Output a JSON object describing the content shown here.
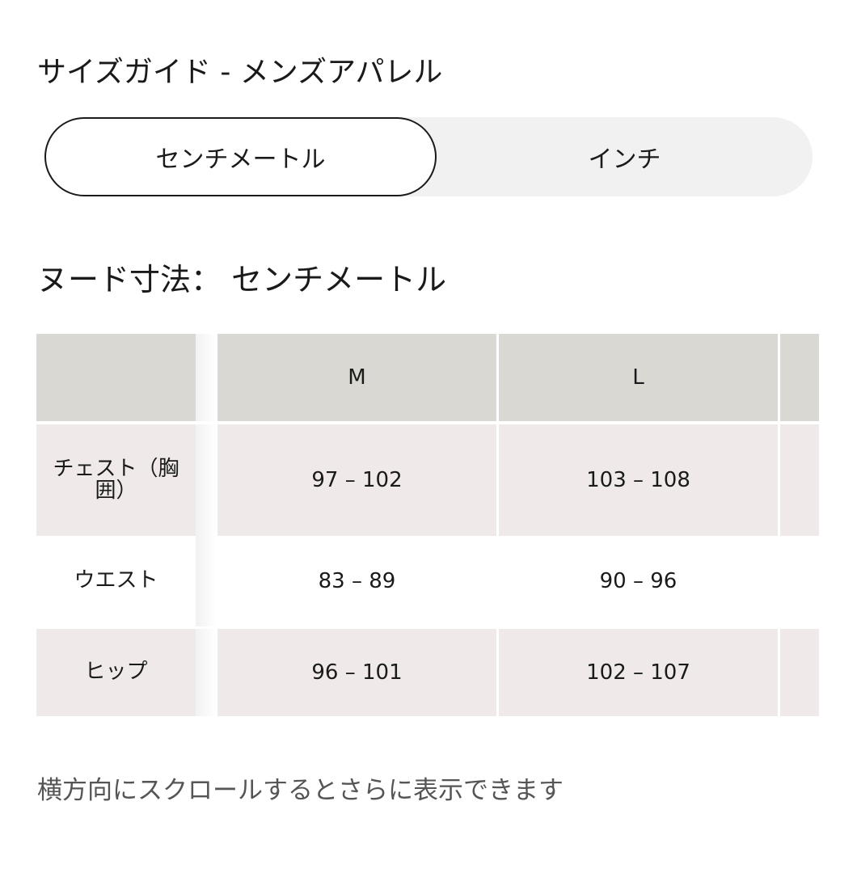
{
  "title": "サイズガイド - メンズアパレル",
  "unit_toggle": {
    "options": [
      "センチメートル",
      "インチ"
    ],
    "selected": "センチメートル"
  },
  "subtitle": "ヌード寸法： センチメートル",
  "table": {
    "headers": [
      "",
      "M",
      "L"
    ],
    "rows": [
      {
        "label": "チェスト（胸囲）",
        "values": [
          "97 – 102",
          "103 – 108"
        ]
      },
      {
        "label": "ウエスト",
        "values": [
          "83 – 89",
          "90 – 96"
        ]
      },
      {
        "label": "ヒップ",
        "values": [
          "96 – 101",
          "102 – 107"
        ]
      }
    ]
  },
  "scroll_hint": "横方向にスクロールするとさらに表示できます",
  "colors": {
    "header_bg": "#d9d8d3",
    "row_shade": "#efeae9",
    "toggle_bg": "#f1f1f1"
  }
}
